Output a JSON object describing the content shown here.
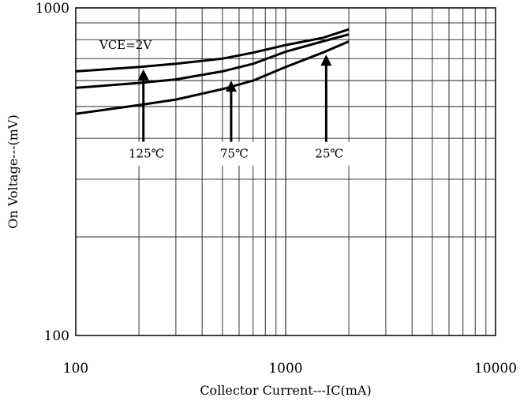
{
  "chart_data": {
    "type": "line",
    "title": "",
    "xlabel": "Collector Current---IC(mA)",
    "ylabel": "On Voltage---(mV)",
    "x_scale": "log",
    "y_scale": "log",
    "xlim": [
      100,
      10000
    ],
    "ylim": [
      100,
      1000
    ],
    "x_ticks": [
      "100",
      "1000",
      "10000"
    ],
    "y_ticks": [
      "100",
      "1000"
    ],
    "grid": true,
    "legend": "none",
    "annotation": "VCE=2V",
    "series": [
      {
        "name": "125℃",
        "x": [
          100,
          200,
          300,
          500,
          700,
          1000,
          1500,
          2000
        ],
        "y": [
          640,
          660,
          675,
          700,
          730,
          770,
          810,
          860
        ]
      },
      {
        "name": "75℃",
        "x": [
          100,
          200,
          300,
          500,
          700,
          1000,
          1500,
          2000
        ],
        "y": [
          570,
          590,
          605,
          640,
          675,
          735,
          790,
          830
        ]
      },
      {
        "name": "25℃",
        "x": [
          100,
          200,
          300,
          500,
          700,
          1000,
          1500,
          2000
        ],
        "y": [
          475,
          505,
          525,
          565,
          600,
          660,
          730,
          790
        ]
      }
    ],
    "arrow_labels": [
      {
        "label": "125℃",
        "x": 210,
        "y_from": 390,
        "y_to": 650
      },
      {
        "label": "75℃",
        "x": 550,
        "y_from": 390,
        "y_to": 600
      },
      {
        "label": "25℃",
        "x": 1560,
        "y_from": 390,
        "y_to": 720
      }
    ]
  }
}
